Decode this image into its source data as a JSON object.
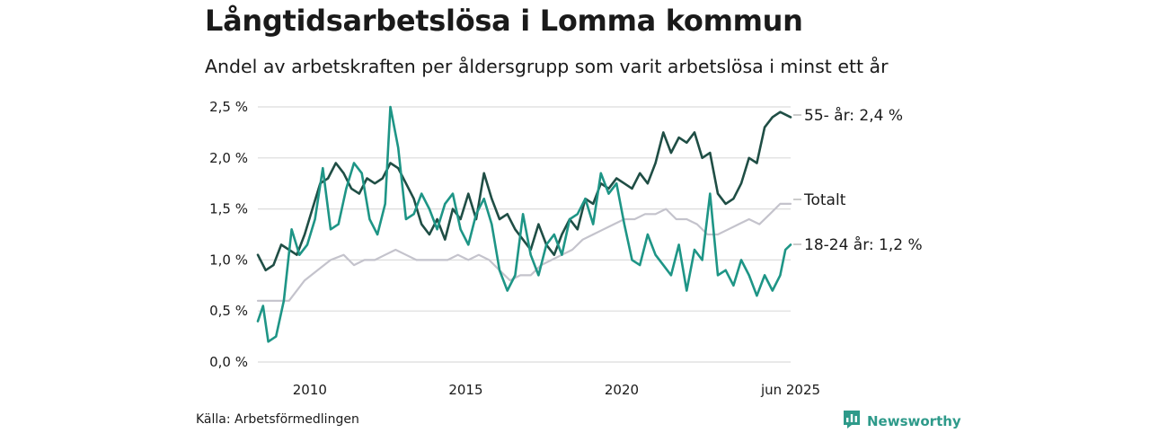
{
  "title": "Långtidsarbetslösa i Lomma kommun",
  "subtitle": "Andel av arbetskraften per åldersgrupp som varit arbetslösa i minst ett år",
  "source": "Källa: Arbetsförmedlingen",
  "brand": "Newsworthy",
  "brand_icon": "bar-chart-logo-icon",
  "colors": {
    "old": "#1f4e45",
    "young": "#1e9586",
    "total": "#c4c3cc",
    "grid": "#dcdcdc"
  },
  "chart_data": {
    "type": "line",
    "title": "Långtidsarbetslösa i Lomma kommun",
    "subtitle": "Andel av arbetskraften per åldersgrupp som varit arbetslösa i minst ett år",
    "xlabel": "",
    "ylabel": "",
    "x_start": "2008-05",
    "x_end": "2025-06",
    "xlim": [
      "2008-05",
      "2025-06"
    ],
    "ylim": [
      0,
      2.5
    ],
    "y_ticks": [
      0,
      0.5,
      1.0,
      1.5,
      2.0,
      2.5
    ],
    "y_tick_labels": [
      "0,0 %",
      "0,5 %",
      "1,0 %",
      "1,5 %",
      "2,0 %",
      "2,5 %"
    ],
    "x_ticks": [
      "2010-01",
      "2015-01",
      "2020-01",
      "2025-06"
    ],
    "x_tick_labels": [
      "2010",
      "2015",
      "2020",
      "jun 2025"
    ],
    "grid": true,
    "legend": "end labels",
    "series": [
      {
        "name": "55- år",
        "end_label": "55- år: 2,4 %",
        "color": "#1f4e45",
        "points": [
          [
            "2008-05",
            1.05
          ],
          [
            "2008-08",
            0.9
          ],
          [
            "2008-11",
            0.95
          ],
          [
            "2009-02",
            1.15
          ],
          [
            "2009-05",
            1.1
          ],
          [
            "2009-08",
            1.05
          ],
          [
            "2009-11",
            1.25
          ],
          [
            "2010-02",
            1.5
          ],
          [
            "2010-05",
            1.75
          ],
          [
            "2010-08",
            1.8
          ],
          [
            "2010-11",
            1.95
          ],
          [
            "2011-02",
            1.85
          ],
          [
            "2011-05",
            1.7
          ],
          [
            "2011-08",
            1.65
          ],
          [
            "2011-11",
            1.8
          ],
          [
            "2012-02",
            1.75
          ],
          [
            "2012-05",
            1.8
          ],
          [
            "2012-08",
            1.95
          ],
          [
            "2012-11",
            1.9
          ],
          [
            "2013-02",
            1.75
          ],
          [
            "2013-05",
            1.6
          ],
          [
            "2013-08",
            1.35
          ],
          [
            "2013-11",
            1.25
          ],
          [
            "2014-02",
            1.4
          ],
          [
            "2014-05",
            1.2
          ],
          [
            "2014-08",
            1.5
          ],
          [
            "2014-11",
            1.4
          ],
          [
            "2015-02",
            1.65
          ],
          [
            "2015-05",
            1.4
          ],
          [
            "2015-08",
            1.85
          ],
          [
            "2015-11",
            1.6
          ],
          [
            "2016-02",
            1.4
          ],
          [
            "2016-05",
            1.45
          ],
          [
            "2016-08",
            1.3
          ],
          [
            "2016-11",
            1.2
          ],
          [
            "2017-02",
            1.1
          ],
          [
            "2017-05",
            1.35
          ],
          [
            "2017-08",
            1.15
          ],
          [
            "2017-11",
            1.05
          ],
          [
            "2018-02",
            1.25
          ],
          [
            "2018-05",
            1.4
          ],
          [
            "2018-08",
            1.3
          ],
          [
            "2018-11",
            1.6
          ],
          [
            "2019-02",
            1.55
          ],
          [
            "2019-05",
            1.75
          ],
          [
            "2019-08",
            1.7
          ],
          [
            "2019-11",
            1.8
          ],
          [
            "2020-02",
            1.75
          ],
          [
            "2020-05",
            1.7
          ],
          [
            "2020-08",
            1.85
          ],
          [
            "2020-11",
            1.75
          ],
          [
            "2021-02",
            1.95
          ],
          [
            "2021-05",
            2.25
          ],
          [
            "2021-08",
            2.05
          ],
          [
            "2021-11",
            2.2
          ],
          [
            "2022-02",
            2.15
          ],
          [
            "2022-05",
            2.25
          ],
          [
            "2022-08",
            2.0
          ],
          [
            "2022-11",
            2.05
          ],
          [
            "2023-02",
            1.65
          ],
          [
            "2023-05",
            1.55
          ],
          [
            "2023-08",
            1.6
          ],
          [
            "2023-11",
            1.75
          ],
          [
            "2024-02",
            2.0
          ],
          [
            "2024-05",
            1.95
          ],
          [
            "2024-08",
            2.3
          ],
          [
            "2024-11",
            2.4
          ],
          [
            "2025-02",
            2.45
          ],
          [
            "2025-06",
            2.4
          ]
        ]
      },
      {
        "name": "Totalt",
        "end_label": "Totalt",
        "color": "#c4c3cc",
        "points": [
          [
            "2008-05",
            0.6
          ],
          [
            "2009-05",
            0.6
          ],
          [
            "2009-11",
            0.8
          ],
          [
            "2010-04",
            0.9
          ],
          [
            "2010-09",
            1.0
          ],
          [
            "2011-02",
            1.05
          ],
          [
            "2011-06",
            0.95
          ],
          [
            "2011-10",
            1.0
          ],
          [
            "2012-02",
            1.0
          ],
          [
            "2012-06",
            1.05
          ],
          [
            "2012-10",
            1.1
          ],
          [
            "2013-02",
            1.05
          ],
          [
            "2013-06",
            1.0
          ],
          [
            "2013-10",
            1.0
          ],
          [
            "2014-02",
            1.0
          ],
          [
            "2014-06",
            1.0
          ],
          [
            "2014-10",
            1.05
          ],
          [
            "2015-02",
            1.0
          ],
          [
            "2015-06",
            1.05
          ],
          [
            "2015-10",
            1.0
          ],
          [
            "2016-02",
            0.9
          ],
          [
            "2016-06",
            0.8
          ],
          [
            "2016-10",
            0.85
          ],
          [
            "2017-02",
            0.85
          ],
          [
            "2017-06",
            0.95
          ],
          [
            "2017-10",
            1.0
          ],
          [
            "2018-02",
            1.05
          ],
          [
            "2018-06",
            1.1
          ],
          [
            "2018-10",
            1.2
          ],
          [
            "2019-02",
            1.25
          ],
          [
            "2019-06",
            1.3
          ],
          [
            "2019-10",
            1.35
          ],
          [
            "2020-02",
            1.4
          ],
          [
            "2020-06",
            1.4
          ],
          [
            "2020-10",
            1.45
          ],
          [
            "2021-02",
            1.45
          ],
          [
            "2021-06",
            1.5
          ],
          [
            "2021-10",
            1.4
          ],
          [
            "2022-02",
            1.4
          ],
          [
            "2022-06",
            1.35
          ],
          [
            "2022-10",
            1.25
          ],
          [
            "2023-02",
            1.25
          ],
          [
            "2023-06",
            1.3
          ],
          [
            "2023-10",
            1.35
          ],
          [
            "2024-02",
            1.4
          ],
          [
            "2024-06",
            1.35
          ],
          [
            "2024-10",
            1.45
          ],
          [
            "2025-02",
            1.55
          ],
          [
            "2025-06",
            1.55
          ]
        ]
      },
      {
        "name": "18-24 år",
        "end_label": "18-24 år: 1,2 %",
        "color": "#1e9586",
        "points": [
          [
            "2008-05",
            0.4
          ],
          [
            "2008-07",
            0.55
          ],
          [
            "2008-09",
            0.2
          ],
          [
            "2008-12",
            0.25
          ],
          [
            "2009-03",
            0.6
          ],
          [
            "2009-06",
            1.3
          ],
          [
            "2009-09",
            1.05
          ],
          [
            "2009-12",
            1.15
          ],
          [
            "2010-03",
            1.4
          ],
          [
            "2010-06",
            1.9
          ],
          [
            "2010-09",
            1.3
          ],
          [
            "2010-12",
            1.35
          ],
          [
            "2011-03",
            1.7
          ],
          [
            "2011-06",
            1.95
          ],
          [
            "2011-09",
            1.85
          ],
          [
            "2011-12",
            1.4
          ],
          [
            "2012-03",
            1.25
          ],
          [
            "2012-06",
            1.55
          ],
          [
            "2012-08",
            2.5
          ],
          [
            "2012-11",
            2.1
          ],
          [
            "2013-02",
            1.4
          ],
          [
            "2013-05",
            1.45
          ],
          [
            "2013-08",
            1.65
          ],
          [
            "2013-11",
            1.5
          ],
          [
            "2014-02",
            1.3
          ],
          [
            "2014-05",
            1.55
          ],
          [
            "2014-08",
            1.65
          ],
          [
            "2014-11",
            1.3
          ],
          [
            "2015-02",
            1.15
          ],
          [
            "2015-05",
            1.45
          ],
          [
            "2015-08",
            1.6
          ],
          [
            "2015-11",
            1.35
          ],
          [
            "2016-02",
            0.9
          ],
          [
            "2016-05",
            0.7
          ],
          [
            "2016-08",
            0.85
          ],
          [
            "2016-11",
            1.45
          ],
          [
            "2017-02",
            1.05
          ],
          [
            "2017-05",
            0.85
          ],
          [
            "2017-08",
            1.15
          ],
          [
            "2017-11",
            1.25
          ],
          [
            "2018-02",
            1.05
          ],
          [
            "2018-05",
            1.4
          ],
          [
            "2018-08",
            1.45
          ],
          [
            "2018-11",
            1.6
          ],
          [
            "2019-02",
            1.35
          ],
          [
            "2019-05",
            1.85
          ],
          [
            "2019-08",
            1.65
          ],
          [
            "2019-11",
            1.75
          ],
          [
            "2020-02",
            1.35
          ],
          [
            "2020-05",
            1.0
          ],
          [
            "2020-08",
            0.95
          ],
          [
            "2020-11",
            1.25
          ],
          [
            "2021-02",
            1.05
          ],
          [
            "2021-05",
            0.95
          ],
          [
            "2021-08",
            0.85
          ],
          [
            "2021-11",
            1.15
          ],
          [
            "2022-02",
            0.7
          ],
          [
            "2022-05",
            1.1
          ],
          [
            "2022-08",
            1.0
          ],
          [
            "2022-11",
            1.65
          ],
          [
            "2023-02",
            0.85
          ],
          [
            "2023-05",
            0.9
          ],
          [
            "2023-08",
            0.75
          ],
          [
            "2023-11",
            1.0
          ],
          [
            "2024-02",
            0.85
          ],
          [
            "2024-05",
            0.65
          ],
          [
            "2024-08",
            0.85
          ],
          [
            "2024-11",
            0.7
          ],
          [
            "2025-02",
            0.85
          ],
          [
            "2025-04",
            1.1
          ],
          [
            "2025-06",
            1.15
          ]
        ]
      }
    ]
  }
}
